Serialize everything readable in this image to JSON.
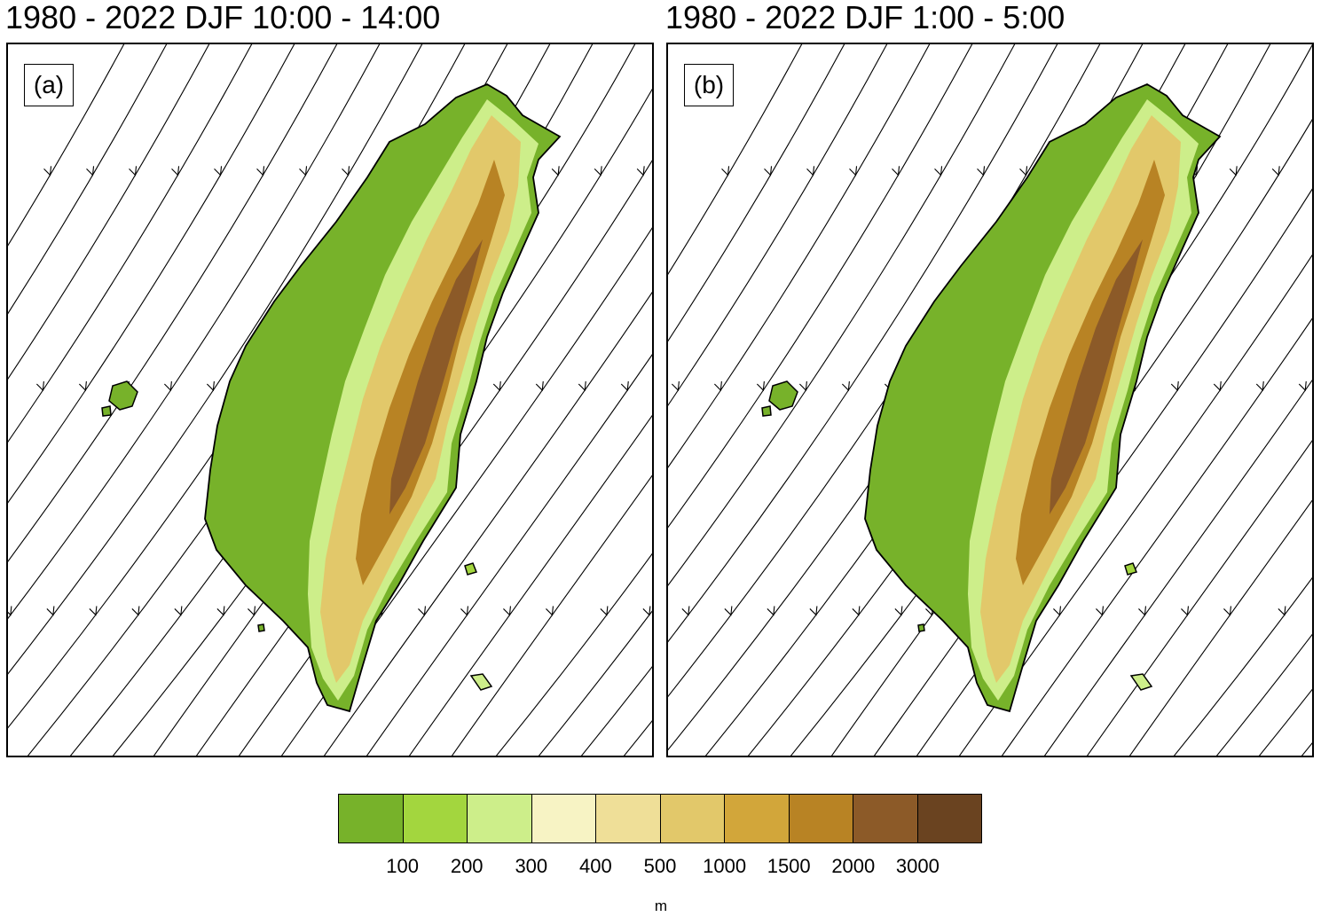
{
  "panels": [
    {
      "title": "1980 - 2022 DJF 10:00 - 14:00",
      "label": "(a)"
    },
    {
      "title": "1980 - 2022 DJF 1:00 - 5:00",
      "label": "(b)"
    }
  ],
  "colorbar": {
    "colors": [
      "#77b22a",
      "#a3d63e",
      "#cdee8a",
      "#f7f3c4",
      "#efdf98",
      "#e2c86a",
      "#d2a63a",
      "#b88324",
      "#8c5a28",
      "#6a4320"
    ],
    "labels": [
      "100",
      "200",
      "300",
      "400",
      "500",
      "1000",
      "1500",
      "2000",
      "3000"
    ],
    "unit": "m"
  }
}
